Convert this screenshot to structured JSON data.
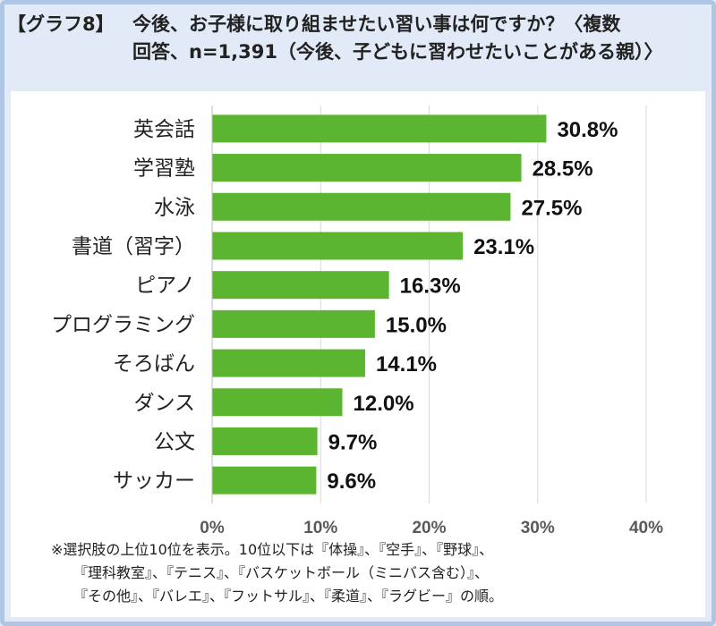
{
  "header": {
    "prefix": "【グラフ8】",
    "line1": "今後、お子様に取り組ませたい習い事は何ですか？〈複数",
    "line2": "回答、n=1,391（今後、子どもに習わせたいことがある親）〉"
  },
  "colors": {
    "bar": "#5cb531",
    "grid": "#d9d9d9",
    "header_bg": "#e1eaf6",
    "border": "#aec6e4"
  },
  "chart_data": {
    "type": "bar",
    "orientation": "horizontal",
    "categories": [
      "英会話",
      "学習塾",
      "水泳",
      "書道（習字）",
      "ピアノ",
      "プログラミング",
      "そろばん",
      "ダンス",
      "公文",
      "サッカー"
    ],
    "values": [
      30.8,
      28.5,
      27.5,
      23.1,
      16.3,
      15.0,
      14.1,
      12.0,
      9.7,
      9.6
    ],
    "value_labels": [
      "30.8%",
      "28.5%",
      "27.5%",
      "23.1%",
      "16.3%",
      "15.0%",
      "14.1%",
      "12.0%",
      "9.7%",
      "9.6%"
    ],
    "xlim": [
      0,
      40
    ],
    "xticks": [
      0,
      10,
      20,
      30,
      40
    ],
    "xtick_labels": [
      "0%",
      "10%",
      "20%",
      "30%",
      "40%"
    ],
    "grid": true
  },
  "note": {
    "line1": "※選択肢の上位10位を表示。10位以下は『体操』、『空手』、『野球』、",
    "line2": "『理科教室』、『テニス』、『バスケットボール（ミニバス含む）』、",
    "line3": "『その他』、『バレエ』、『フットサル』、『柔道』、『ラグビー』の順。"
  }
}
